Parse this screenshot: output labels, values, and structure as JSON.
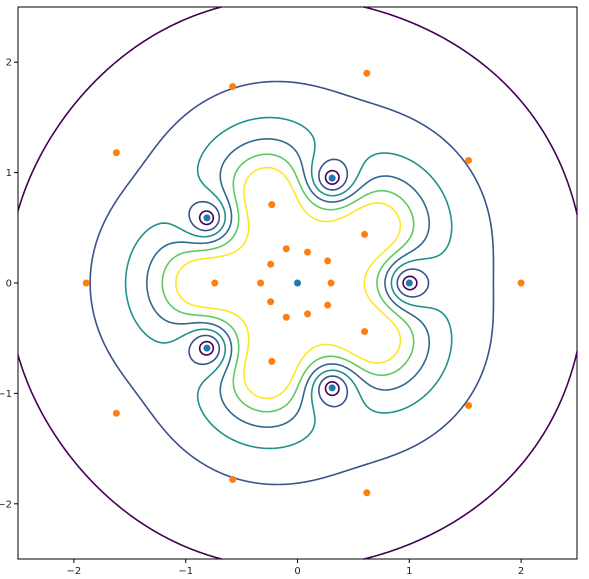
{
  "chart_data": {
    "type": "scatter",
    "title": "",
    "xlabel": "",
    "ylabel": "",
    "xlim": [
      -2.5,
      2.5
    ],
    "ylim": [
      -2.5,
      2.5
    ],
    "grid": false,
    "legend": "none",
    "x_ticks": [
      -2,
      -1,
      0,
      1,
      2
    ],
    "y_ticks": [
      -2,
      -1,
      0,
      1,
      2
    ],
    "x_tick_labels": [
      "−2",
      "−1",
      "0",
      "1",
      "2"
    ],
    "y_tick_labels": [
      "−2",
      "−1",
      "0",
      "1",
      "2"
    ],
    "series": [
      {
        "color": "#1f77b4",
        "marker": "o",
        "points": [
          [
            0,
            0
          ],
          [
            1.0,
            0.0
          ],
          [
            0.31,
            0.95
          ],
          [
            -0.81,
            0.59
          ],
          [
            -0.81,
            -0.59
          ],
          [
            0.31,
            -0.95
          ]
        ]
      },
      {
        "color": "#ff7f0e",
        "marker": "o",
        "points": [
          [
            0.62,
            1.9
          ],
          [
            -1.62,
            1.18
          ],
          [
            -1.62,
            -1.18
          ],
          [
            0.62,
            -1.9
          ],
          [
            2.0,
            0.0
          ],
          [
            1.53,
            1.11
          ],
          [
            -0.58,
            1.78
          ],
          [
            -1.89,
            0.0
          ],
          [
            -0.58,
            -1.78
          ],
          [
            1.53,
            -1.11
          ],
          [
            0.6,
            0.44
          ],
          [
            -0.23,
            0.71
          ],
          [
            -0.74,
            0.0
          ],
          [
            -0.23,
            -0.71
          ],
          [
            0.6,
            -0.44
          ],
          [
            0.27,
            0.2
          ],
          [
            -0.1,
            0.31
          ],
          [
            -0.33,
            0.0
          ],
          [
            -0.1,
            -0.31
          ],
          [
            0.27,
            -0.2
          ],
          [
            0.3,
            0.0
          ],
          [
            0.09,
            0.28
          ],
          [
            -0.24,
            0.17
          ],
          [
            -0.24,
            -0.17
          ],
          [
            0.09,
            -0.28
          ]
        ]
      }
    ],
    "contours": {
      "function": "|z^5 - 1| / (1 + |z|^7)",
      "colors": [
        "#440154",
        "#3b528b",
        "#21918c",
        "#31688e",
        "#5ec962",
        "#fde725"
      ]
    }
  }
}
